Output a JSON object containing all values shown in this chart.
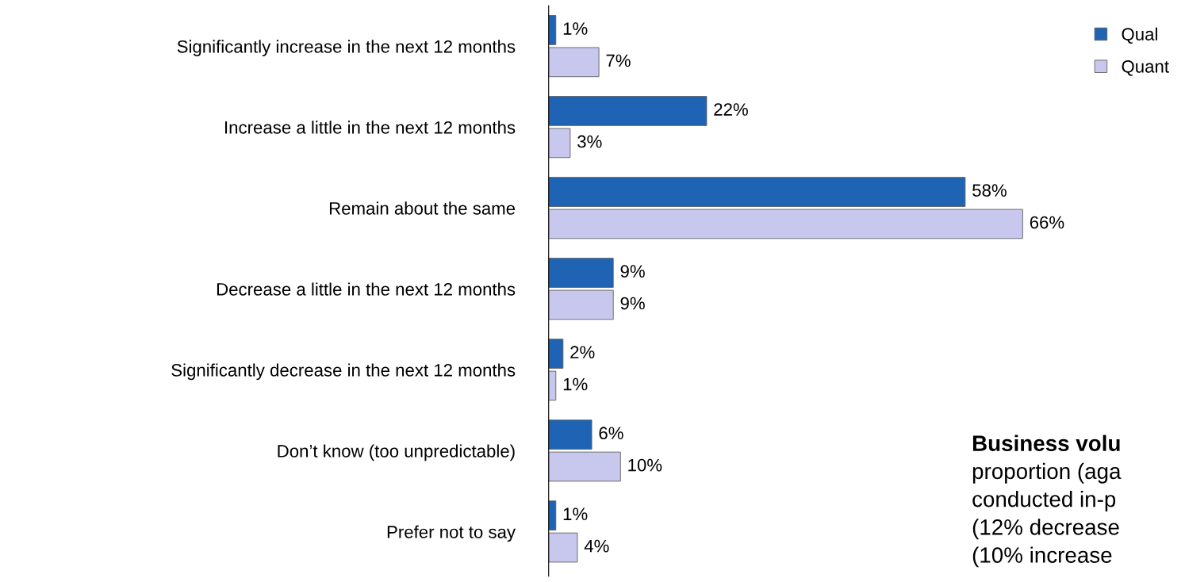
{
  "chart_data": {
    "type": "bar",
    "orientation": "horizontal",
    "legend": "top right",
    "grid": false,
    "categories": [
      "Significantly increase in the next 12 months",
      "Increase a little in the next 12 months",
      "Remain about the same",
      "Decrease a little in the next 12 months",
      "Significantly decrease in the next 12 months",
      "Don’t know (too unpredictable)",
      "Prefer not to say"
    ],
    "series": [
      {
        "name": "Qual",
        "color": "#1f64b4",
        "values": [
          1,
          22,
          58,
          9,
          2,
          6,
          1
        ],
        "value_labels": [
          "1%",
          "22%",
          "58%",
          "9%",
          "2%",
          "6%",
          "1%"
        ]
      },
      {
        "name": "Quant",
        "color": "#c8c8ee",
        "values": [
          7,
          3,
          66,
          9,
          1,
          10,
          4
        ],
        "value_labels": [
          "7%",
          "3%",
          "66%",
          "9%",
          "1%",
          "10%",
          "4%"
        ]
      }
    ],
    "annotations": [
      "Business volu",
      "proportion (aga",
      "conducted in-p",
      "(12% decrease",
      "(10% increase"
    ]
  }
}
